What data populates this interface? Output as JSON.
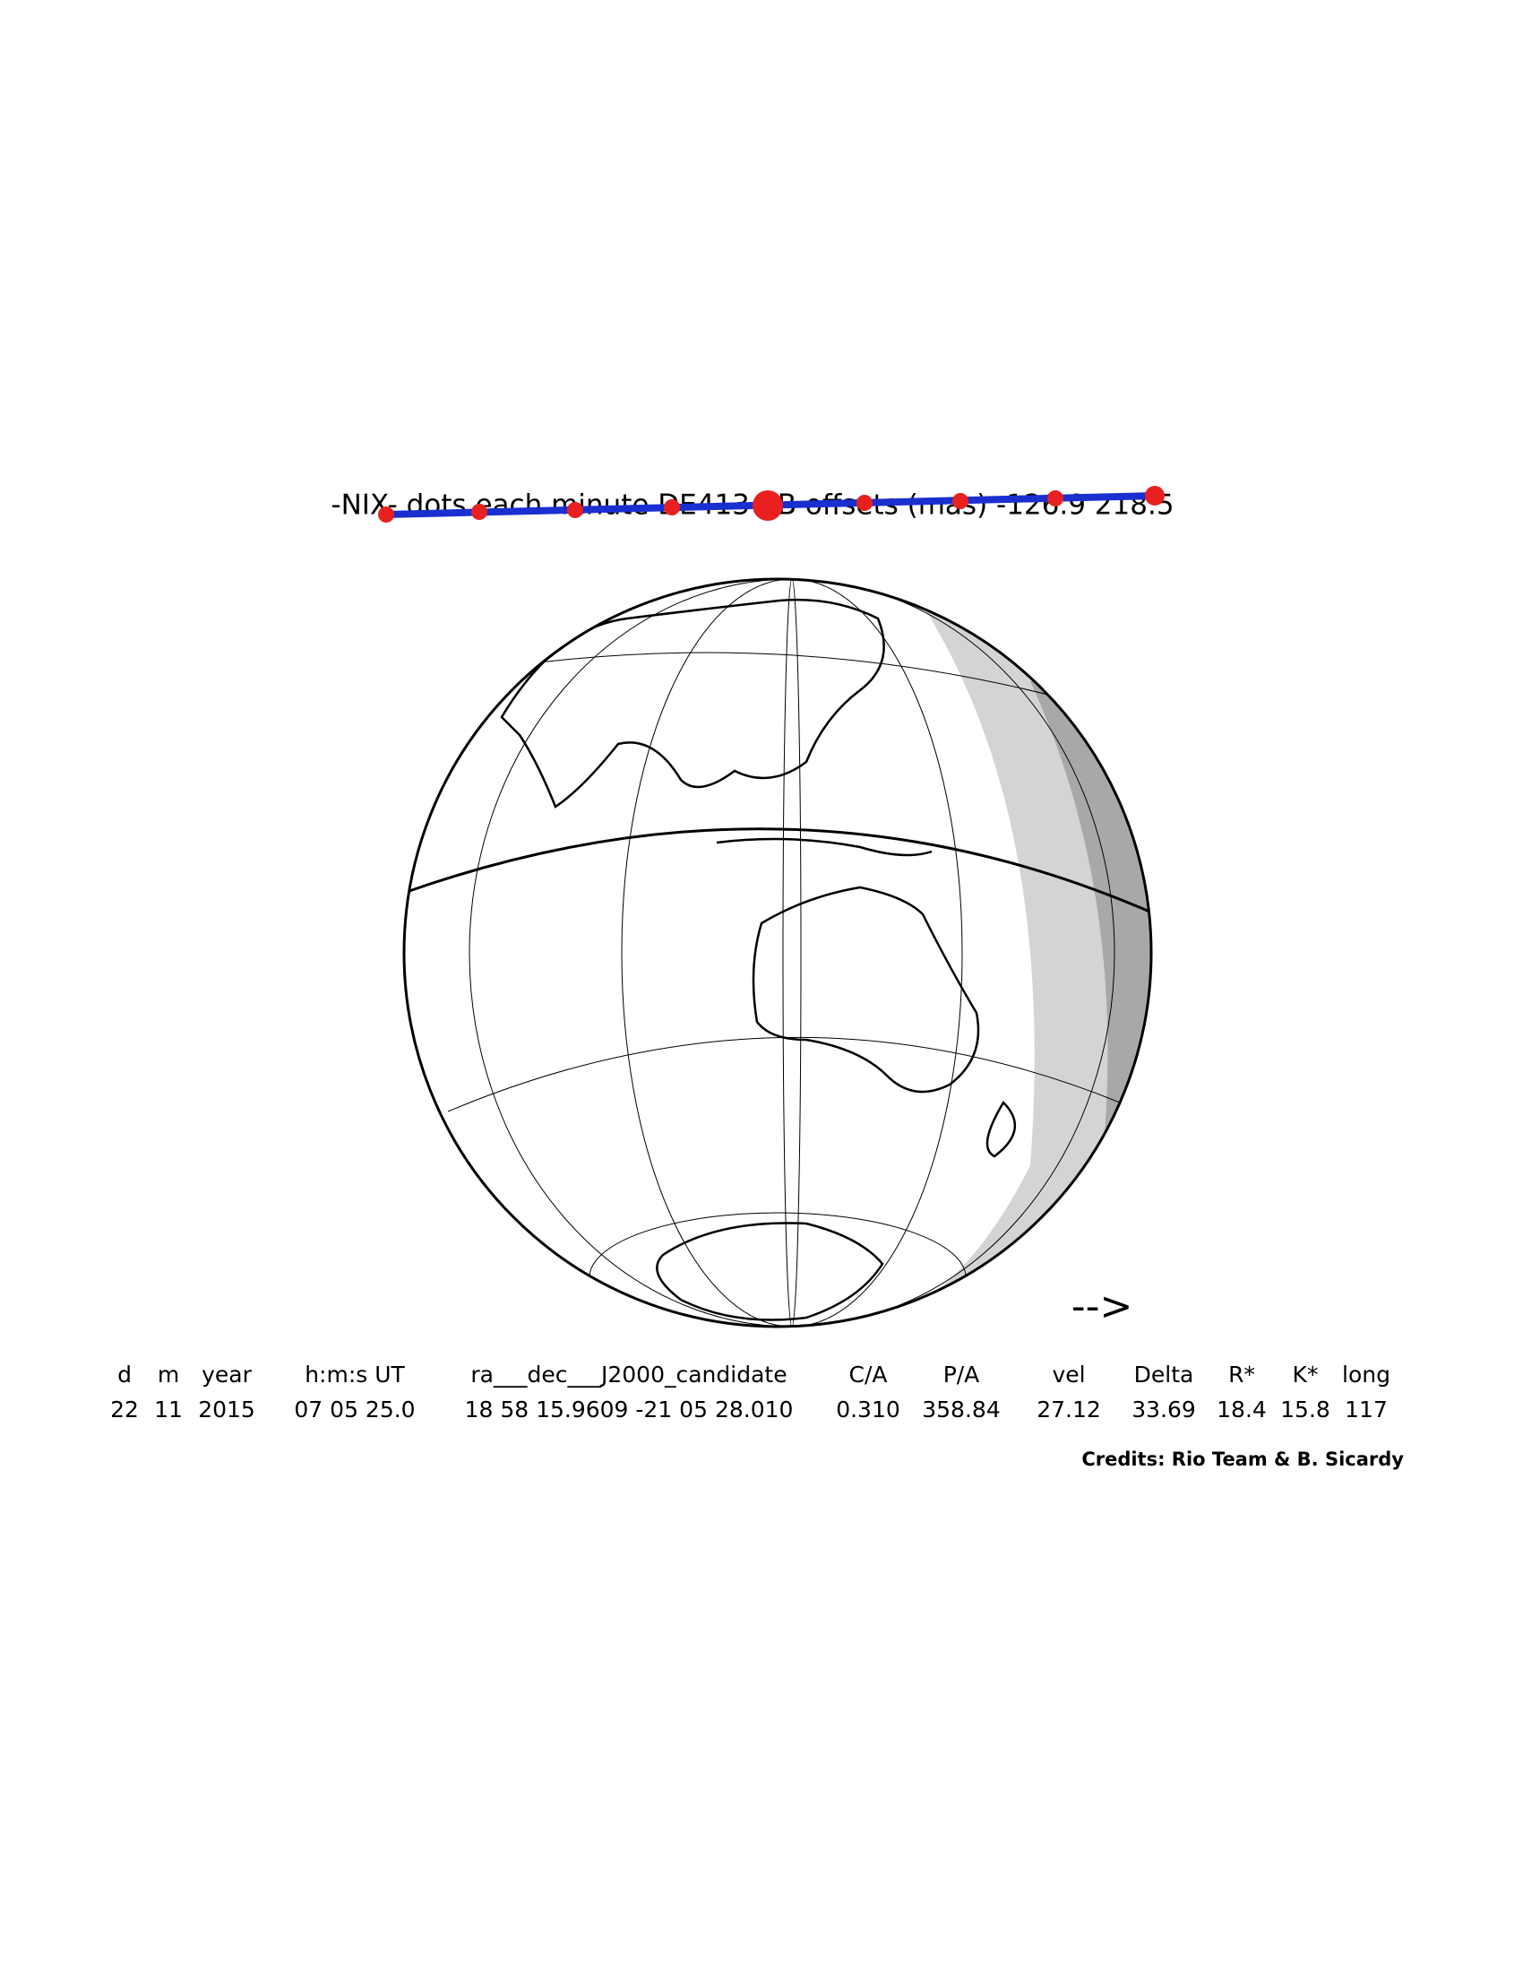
{
  "title": "-NIX- dots each minute   DE413 - B   offsets (mas) -126.9   218.5",
  "arrow": "-->",
  "table": {
    "header": [
      "d",
      "m",
      "year",
      "h:m:s UT",
      "ra___dec___J2000_candidate",
      "C/A",
      "P/A",
      "vel",
      "Delta",
      "R*",
      "K*",
      "long"
    ],
    "values": [
      "22",
      "11",
      "2015",
      "07 05 25.0",
      "18 58 15.9609 -21 05 28.010",
      "0.310",
      "358.84",
      "27.12",
      "33.69",
      "18.4",
      "15.8",
      "117"
    ]
  },
  "credits": "Credits: Rio Team & B. Sicardy"
}
